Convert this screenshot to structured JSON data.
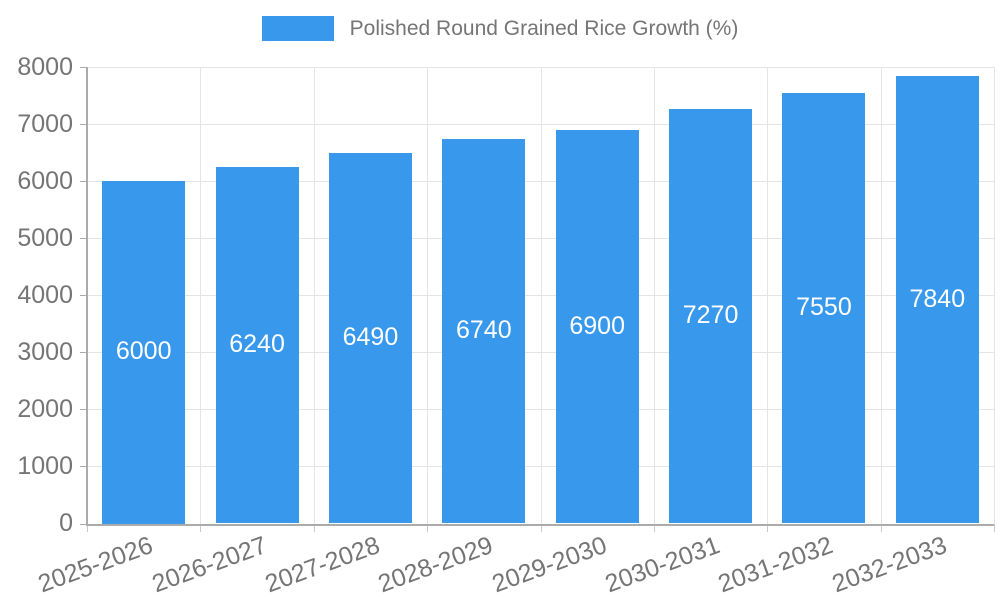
{
  "chart_data": {
    "type": "bar",
    "title": "",
    "legend": [
      {
        "label": "Polished Round Grained Rice Growth (%)"
      }
    ],
    "categories": [
      "2025-2026",
      "2026-2027",
      "2027-2028",
      "2028-2029",
      "2029-2030",
      "2030-2031",
      "2031-2032",
      "2032-2033"
    ],
    "values": [
      6000,
      6240,
      6490,
      6740,
      6900,
      7270,
      7550,
      7840
    ],
    "bar_value_labels": [
      "6000",
      "6240",
      "6490",
      "6740",
      "6900",
      "7270",
      "7550",
      "7840"
    ],
    "xlabel": "",
    "ylabel": "",
    "ylim": [
      0,
      8000
    ],
    "yticks": [
      0,
      1000,
      2000,
      3000,
      4000,
      5000,
      6000,
      7000,
      8000
    ],
    "grid": "on",
    "legend_position": "top-center",
    "x_label_rotation_deg": -20,
    "colors": {
      "bar": "#3899EC",
      "bar_label_text": "#ffffff",
      "axis_label_text": "#757575",
      "legend_text": "#757575",
      "grid_line": "#e4e4e4",
      "axis_line": "#ababab",
      "background": "#ffffff"
    }
  }
}
